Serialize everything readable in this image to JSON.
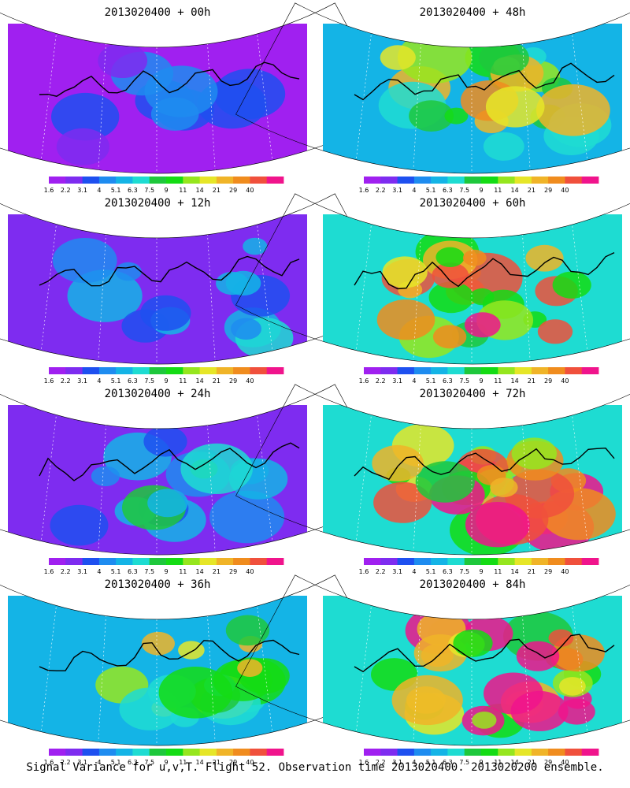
{
  "caption": "Signal Variance for u,v,T. Flight 52. Observation time 2013020400. 2013020200 ensemble.",
  "colorbar": {
    "ticks": [
      "1.6",
      "2.2",
      "3.1",
      "4",
      "5.1",
      "6.3",
      "7.5",
      "9",
      "11",
      "14",
      "21",
      "29",
      "40"
    ],
    "colors": [
      "#a020f0",
      "#7e2cf0",
      "#1e50f0",
      "#1e8cf0",
      "#14b4e6",
      "#1edcd2",
      "#1ec83c",
      "#14dc14",
      "#96e61e",
      "#e6e628",
      "#f0b428",
      "#f08c1e",
      "#f0503c",
      "#f0148c"
    ]
  },
  "panels": [
    {
      "title": "2013020400 + 00h",
      "hour": 0
    },
    {
      "title": "2013020400 + 48h",
      "hour": 48
    },
    {
      "title": "2013020400 + 12h",
      "hour": 12
    },
    {
      "title": "2013020400 + 60h",
      "hour": 60
    },
    {
      "title": "2013020400 + 24h",
      "hour": 24
    },
    {
      "title": "2013020400 + 72h",
      "hour": 72
    },
    {
      "title": "2013020400 + 36h",
      "hour": 36
    },
    {
      "title": "2013020400 + 84h",
      "hour": 84
    }
  ]
}
